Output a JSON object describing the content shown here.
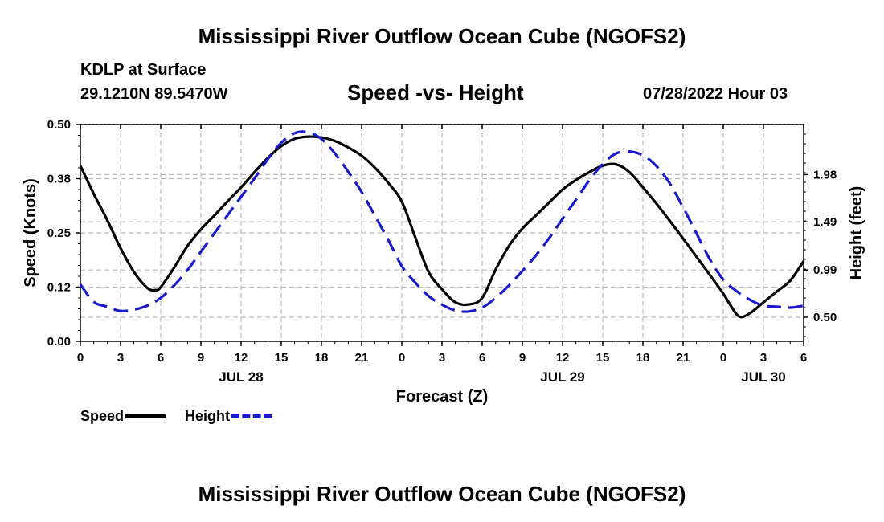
{
  "header": {
    "title": "Mississippi River Outflow Ocean Cube (NGOFS2)",
    "station": "KDLP at Surface",
    "coords": "29.1210N  89.5470W",
    "subtitle": "Speed -vs- Height",
    "datetime": "07/28/2022 Hour 03"
  },
  "footer": {
    "title": "Mississippi River Outflow Ocean Cube (NGOFS2)"
  },
  "legend": {
    "speed_label": "Speed",
    "height_label": "Height",
    "speed_color": "#000000",
    "height_color": "#1a1acd"
  },
  "chart_data": {
    "type": "line",
    "xlabel": "Forecast (Z)",
    "ylabel_left": "Speed (Knots)",
    "ylabel_right": "Height (feet)",
    "grid": true,
    "x_range_hours": [
      0,
      54
    ],
    "x_ticks": [
      {
        "hour": 0,
        "label": "0"
      },
      {
        "hour": 3,
        "label": "3"
      },
      {
        "hour": 6,
        "label": "6"
      },
      {
        "hour": 9,
        "label": "9"
      },
      {
        "hour": 12,
        "label": "12"
      },
      {
        "hour": 15,
        "label": "15"
      },
      {
        "hour": 18,
        "label": "18"
      },
      {
        "hour": 21,
        "label": "21"
      },
      {
        "hour": 24,
        "label": "0"
      },
      {
        "hour": 27,
        "label": "3"
      },
      {
        "hour": 30,
        "label": "6"
      },
      {
        "hour": 33,
        "label": "9"
      },
      {
        "hour": 36,
        "label": "12"
      },
      {
        "hour": 39,
        "label": "15"
      },
      {
        "hour": 42,
        "label": "18"
      },
      {
        "hour": 45,
        "label": "21"
      },
      {
        "hour": 48,
        "label": "0"
      },
      {
        "hour": 51,
        "label": "3"
      },
      {
        "hour": 54,
        "label": "6"
      }
    ],
    "date_labels": [
      {
        "hour": 12,
        "label": "JUL 28"
      },
      {
        "hour": 36,
        "label": "JUL 29"
      },
      {
        "hour": 51,
        "label": "JUL 30"
      }
    ],
    "y_left": {
      "range": [
        0,
        0.5
      ],
      "ticks": [
        "0.00",
        "0.12",
        "0.25",
        "0.38",
        "0.50"
      ],
      "tick_values": [
        0,
        0.125,
        0.25,
        0.375,
        0.5
      ]
    },
    "y_right": {
      "range": [
        0.25,
        2.5
      ],
      "ticks": [
        "0.50",
        "0.99",
        "1.49",
        "1.98"
      ],
      "tick_values": [
        0.5,
        0.99,
        1.49,
        1.98
      ]
    },
    "series": [
      {
        "name": "Speed",
        "axis": "left",
        "color": "#000000",
        "dash": "solid",
        "points": [
          [
            0,
            0.405
          ],
          [
            1,
            0.34
          ],
          [
            2,
            0.28
          ],
          [
            3,
            0.215
          ],
          [
            4,
            0.16
          ],
          [
            5,
            0.123
          ],
          [
            5.6,
            0.118
          ],
          [
            6,
            0.125
          ],
          [
            7,
            0.17
          ],
          [
            8,
            0.22
          ],
          [
            9,
            0.258
          ],
          [
            10,
            0.29
          ],
          [
            11,
            0.323
          ],
          [
            12,
            0.355
          ],
          [
            13,
            0.39
          ],
          [
            14,
            0.423
          ],
          [
            15,
            0.45
          ],
          [
            16,
            0.467
          ],
          [
            17,
            0.472
          ],
          [
            18,
            0.47
          ],
          [
            19,
            0.462
          ],
          [
            20,
            0.447
          ],
          [
            21,
            0.428
          ],
          [
            22,
            0.4
          ],
          [
            23,
            0.365
          ],
          [
            24,
            0.322
          ],
          [
            25,
            0.24
          ],
          [
            26,
            0.16
          ],
          [
            27,
            0.12
          ],
          [
            28,
            0.09
          ],
          [
            29,
            0.085
          ],
          [
            30,
            0.1
          ],
          [
            31,
            0.165
          ],
          [
            32,
            0.22
          ],
          [
            33,
            0.26
          ],
          [
            34,
            0.29
          ],
          [
            35,
            0.32
          ],
          [
            36,
            0.35
          ],
          [
            37,
            0.372
          ],
          [
            38,
            0.39
          ],
          [
            39,
            0.405
          ],
          [
            40,
            0.408
          ],
          [
            41,
            0.39
          ],
          [
            42,
            0.355
          ],
          [
            43,
            0.318
          ],
          [
            44,
            0.278
          ],
          [
            45,
            0.237
          ],
          [
            46,
            0.195
          ],
          [
            47,
            0.153
          ],
          [
            48,
            0.11
          ],
          [
            48.5,
            0.085
          ],
          [
            49.2,
            0.057
          ],
          [
            50,
            0.065
          ],
          [
            51,
            0.09
          ],
          [
            52,
            0.115
          ],
          [
            53,
            0.14
          ],
          [
            54,
            0.185
          ]
        ]
      },
      {
        "name": "Height",
        "axis": "right",
        "color": "#1a1acd",
        "dash": "dashed",
        "points": [
          [
            0,
            0.84
          ],
          [
            1,
            0.66
          ],
          [
            2,
            0.61
          ],
          [
            3,
            0.565
          ],
          [
            4,
            0.58
          ],
          [
            5,
            0.62
          ],
          [
            6,
            0.7
          ],
          [
            7,
            0.83
          ],
          [
            8,
            0.99
          ],
          [
            9,
            1.18
          ],
          [
            10,
            1.37
          ],
          [
            11,
            1.56
          ],
          [
            12,
            1.75
          ],
          [
            13,
            1.94
          ],
          [
            14,
            2.14
          ],
          [
            15,
            2.31
          ],
          [
            16,
            2.41
          ],
          [
            17,
            2.42
          ],
          [
            18,
            2.35
          ],
          [
            19,
            2.2
          ],
          [
            20,
            2.01
          ],
          [
            21,
            1.8
          ],
          [
            22,
            1.55
          ],
          [
            23,
            1.3
          ],
          [
            24,
            1.03
          ],
          [
            25,
            0.86
          ],
          [
            26,
            0.72
          ],
          [
            27,
            0.63
          ],
          [
            28,
            0.57
          ],
          [
            29,
            0.56
          ],
          [
            30,
            0.6
          ],
          [
            31,
            0.7
          ],
          [
            32,
            0.83
          ],
          [
            33,
            0.98
          ],
          [
            34,
            1.14
          ],
          [
            35,
            1.32
          ],
          [
            36,
            1.52
          ],
          [
            37,
            1.72
          ],
          [
            38,
            1.92
          ],
          [
            39,
            2.09
          ],
          [
            40,
            2.2
          ],
          [
            41,
            2.22
          ],
          [
            42,
            2.18
          ],
          [
            43,
            2.07
          ],
          [
            44,
            1.89
          ],
          [
            45,
            1.64
          ],
          [
            46,
            1.37
          ],
          [
            47,
            1.1
          ],
          [
            48,
            0.89
          ],
          [
            49,
            0.77
          ],
          [
            50,
            0.68
          ],
          [
            51,
            0.62
          ],
          [
            52,
            0.61
          ],
          [
            53,
            0.6
          ],
          [
            54,
            0.62
          ]
        ]
      }
    ]
  }
}
